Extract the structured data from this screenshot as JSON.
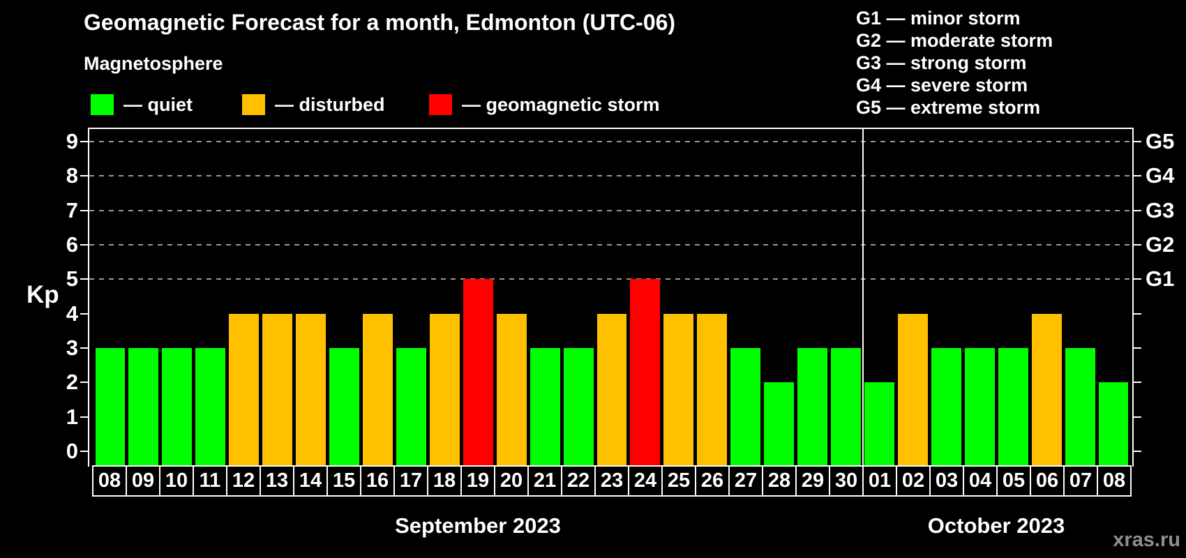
{
  "title": "Geomagnetic Forecast for a month, Edmonton (UTC-06)",
  "subtitle": "Magnetosphere",
  "legend": {
    "items": [
      {
        "key": "quiet",
        "label": "— quiet",
        "color": "#00FF00"
      },
      {
        "key": "disturbed",
        "label": "— disturbed",
        "color": "#FFC000"
      },
      {
        "key": "storm",
        "label": "— geomagnetic storm",
        "color": "#FF0000"
      }
    ]
  },
  "g_legend": [
    "G1 — minor storm",
    "G2 — moderate storm",
    "G3 — strong storm",
    "G4 — severe storm",
    "G5 — extreme storm"
  ],
  "y_axis": {
    "label": "Kp"
  },
  "months": [
    {
      "label": "September 2023"
    },
    {
      "label": "October 2023"
    }
  ],
  "watermark": "xras.ru",
  "chart_data": {
    "type": "bar",
    "title": "Geomagnetic Forecast for a month, Edmonton (UTC-06)",
    "xlabel": "",
    "ylabel": "Kp",
    "ylim": [
      -0.4,
      9.4
    ],
    "y_ticks": [
      0,
      1,
      2,
      3,
      4,
      5,
      6,
      7,
      8,
      9
    ],
    "gridlines": [
      5,
      6,
      7,
      8,
      9
    ],
    "grid": "dashed, only at storm levels G1-G5",
    "legend_position": "top-left",
    "categories": [
      "08",
      "09",
      "10",
      "11",
      "12",
      "13",
      "14",
      "15",
      "16",
      "17",
      "18",
      "19",
      "20",
      "21",
      "22",
      "23",
      "24",
      "25",
      "26",
      "27",
      "28",
      "29",
      "30",
      "01",
      "02",
      "03",
      "04",
      "05",
      "06",
      "07",
      "08"
    ],
    "values": [
      3,
      3,
      3,
      3,
      4,
      4,
      4,
      3,
      4,
      3,
      4,
      5,
      4,
      3,
      3,
      4,
      5,
      4,
      4,
      3,
      2,
      3,
      3,
      2,
      4,
      3,
      3,
      3,
      4,
      3,
      2
    ],
    "statuses": [
      "quiet",
      "quiet",
      "quiet",
      "quiet",
      "disturbed",
      "disturbed",
      "disturbed",
      "quiet",
      "disturbed",
      "quiet",
      "disturbed",
      "storm",
      "disturbed",
      "quiet",
      "quiet",
      "disturbed",
      "storm",
      "disturbed",
      "disturbed",
      "quiet",
      "quiet",
      "quiet",
      "quiet",
      "quiet",
      "disturbed",
      "quiet",
      "quiet",
      "quiet",
      "disturbed",
      "quiet",
      "quiet"
    ],
    "status_colors": {
      "quiet": "#00FF00",
      "disturbed": "#FFC000",
      "storm": "#FF0000"
    },
    "month_split_index": 23,
    "months": [
      {
        "label": "September 2023",
        "days": [
          "08",
          "09",
          "10",
          "11",
          "12",
          "13",
          "14",
          "15",
          "16",
          "17",
          "18",
          "19",
          "20",
          "21",
          "22",
          "23",
          "24",
          "25",
          "26",
          "27",
          "28",
          "29",
          "30"
        ]
      },
      {
        "label": "October 2023",
        "days": [
          "01",
          "02",
          "03",
          "04",
          "05",
          "06",
          "07",
          "08"
        ]
      }
    ],
    "right_axis_labels": [
      {
        "value": 5,
        "label": "G1"
      },
      {
        "value": 6,
        "label": "G2"
      },
      {
        "value": 7,
        "label": "G3"
      },
      {
        "value": 8,
        "label": "G4"
      },
      {
        "value": 9,
        "label": "G5"
      }
    ]
  }
}
